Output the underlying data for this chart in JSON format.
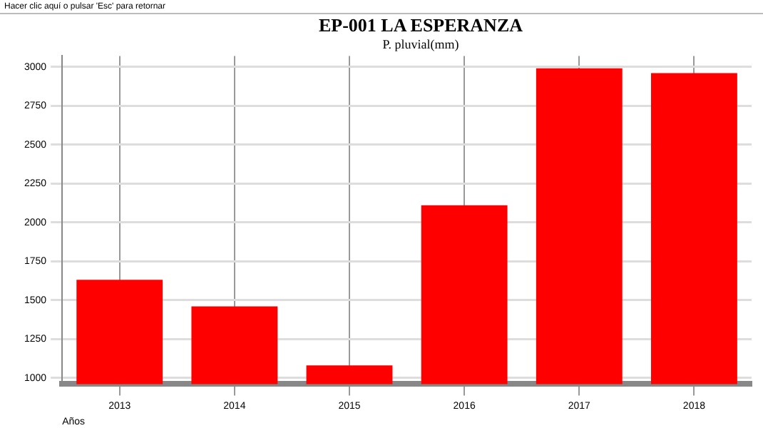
{
  "chart_data": {
    "type": "bar",
    "title": "EP-001  LA ESPERANZA",
    "subtitle": "P. pluvial(mm)",
    "xlabel": "Años",
    "annotations": [
      "Hacer clic aquí o pulsar 'Esc' para retornar"
    ],
    "categories": [
      "2013",
      "2014",
      "2015",
      "2016",
      "2017",
      "2018"
    ],
    "values": [
      1630,
      1460,
      1080,
      2110,
      2990,
      2960
    ],
    "color": "#ff0000",
    "ylim": [
      960,
      3070
    ],
    "yticks": [
      1000,
      1250,
      1500,
      1750,
      2000,
      2250,
      2500,
      2750,
      3000
    ],
    "grid": true,
    "legend": false
  }
}
